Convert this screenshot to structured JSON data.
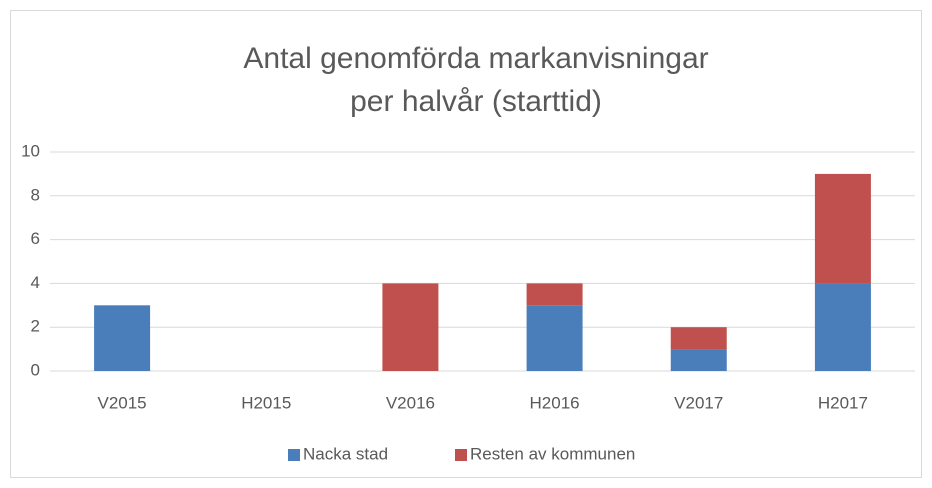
{
  "chart_data": {
    "type": "stacked_bar",
    "title": [
      "Antal genomförda markanvisningar",
      "per halvår (starttid)"
    ],
    "categories": [
      "V2015",
      "H2015",
      "V2016",
      "H2016",
      "V2017",
      "H2017"
    ],
    "series": [
      {
        "name": "Nacka stad",
        "color": "#4a7ebb",
        "values": [
          3,
          0,
          0,
          3,
          1,
          4
        ]
      },
      {
        "name": "Resten av kommunen",
        "color": "#c0504d",
        "values": [
          0,
          0,
          4,
          1,
          1,
          5
        ]
      }
    ],
    "ylim": [
      0,
      10
    ],
    "yticks": [
      0,
      2,
      4,
      6,
      8,
      10
    ],
    "grid": true,
    "legend": "bottom"
  }
}
